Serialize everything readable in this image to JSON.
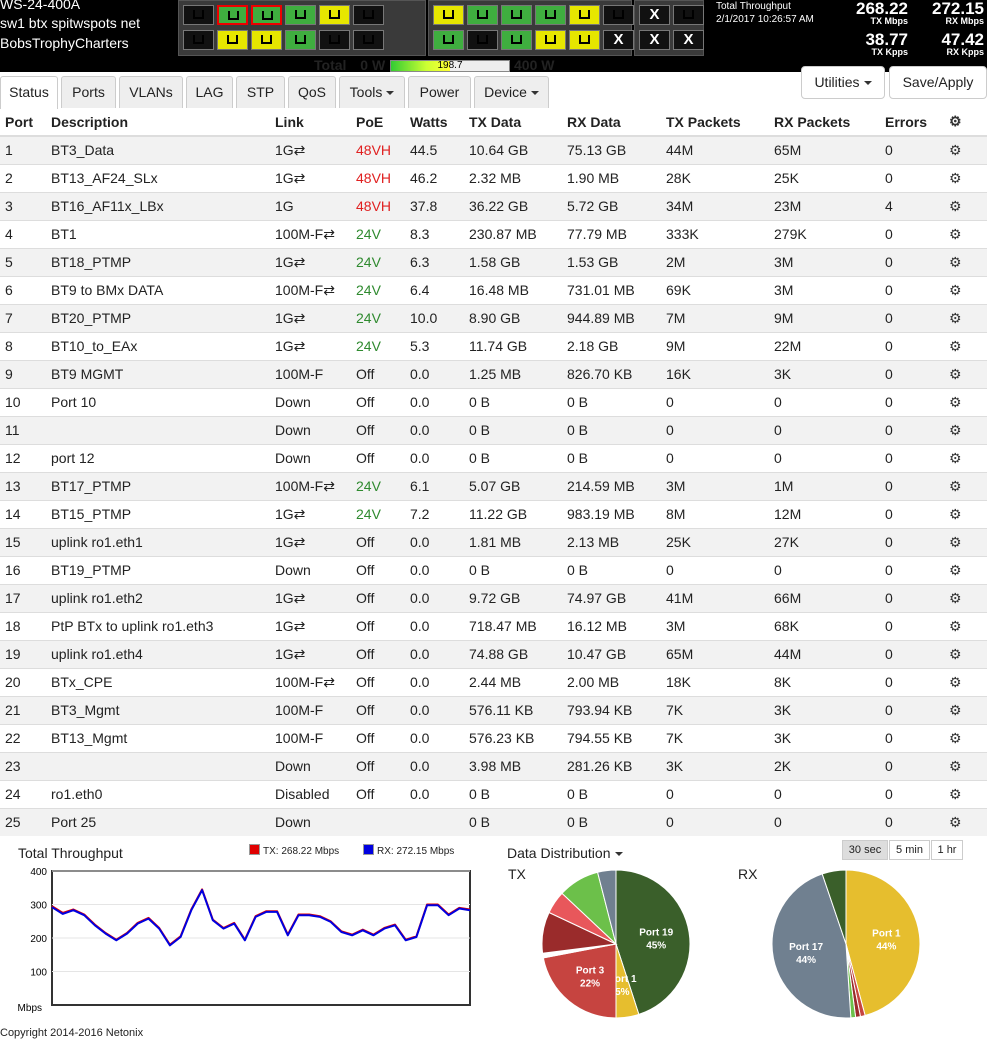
{
  "device": {
    "model": "WS-24-400A",
    "hostname": "sw1 btx spitwspots net",
    "location": "BobsTrophyCharters"
  },
  "power": {
    "label": "Total",
    "min": "0 W",
    "value": "198.7",
    "max": "400 W",
    "fraction": 0.497
  },
  "throughput": {
    "title": "Total Throughput",
    "datetime": "2/1/2017 10:26:57 AM",
    "tx_mbps": "268.22",
    "tx_mbps_unit": "TX Mbps",
    "rx_mbps": "272.15",
    "rx_mbps_unit": "RX Mbps",
    "tx_kpps": "38.77",
    "tx_kpps_unit": "TX Kpps",
    "rx_kpps": "47.42",
    "rx_kpps_unit": "RX Kpps"
  },
  "tabs": [
    "Status",
    "Ports",
    "VLANs",
    "LAG",
    "STP",
    "QoS",
    "Tools",
    "Power",
    "Device"
  ],
  "buttons": {
    "utilities": "Utilities",
    "save": "Save/Apply"
  },
  "columns": [
    "Port",
    "Description",
    "Link",
    "PoE",
    "Watts",
    "TX Data",
    "RX Data",
    "TX Packets",
    "RX Packets",
    "Errors"
  ],
  "rows": [
    [
      "1",
      "BT3_Data",
      "1G⇄",
      "48VH",
      "44.5",
      "10.64 GB",
      "75.13 GB",
      "44M",
      "65M",
      "0"
    ],
    [
      "2",
      "BT13_AF24_SLx",
      "1G⇄",
      "48VH",
      "46.2",
      "2.32 MB",
      "1.90 MB",
      "28K",
      "25K",
      "0"
    ],
    [
      "3",
      "BT16_AF11x_LBx",
      "1G",
      "48VH",
      "37.8",
      "36.22 GB",
      "5.72 GB",
      "34M",
      "23M",
      "4"
    ],
    [
      "4",
      "BT1",
      "100M-F⇄",
      "24V",
      "8.3",
      "230.87 MB",
      "77.79 MB",
      "333K",
      "279K",
      "0"
    ],
    [
      "5",
      "BT18_PTMP",
      "1G⇄",
      "24V",
      "6.3",
      "1.58 GB",
      "1.53 GB",
      "2M",
      "3M",
      "0"
    ],
    [
      "6",
      "BT9 to BMx DATA",
      "100M-F⇄",
      "24V",
      "6.4",
      "16.48 MB",
      "731.01 MB",
      "69K",
      "3M",
      "0"
    ],
    [
      "7",
      "BT20_PTMP",
      "1G⇄",
      "24V",
      "10.0",
      "8.90 GB",
      "944.89 MB",
      "7M",
      "9M",
      "0"
    ],
    [
      "8",
      "BT10_to_EAx",
      "1G⇄",
      "24V",
      "5.3",
      "11.74 GB",
      "2.18 GB",
      "9M",
      "22M",
      "0"
    ],
    [
      "9",
      "BT9 MGMT",
      "100M-F",
      "Off",
      "0.0",
      "1.25 MB",
      "826.70 KB",
      "16K",
      "3K",
      "0"
    ],
    [
      "10",
      "Port 10",
      "Down",
      "Off",
      "0.0",
      "0 B",
      "0 B",
      "0",
      "0",
      "0"
    ],
    [
      "11",
      "",
      "Down",
      "Off",
      "0.0",
      "0 B",
      "0 B",
      "0",
      "0",
      "0"
    ],
    [
      "12",
      "port 12",
      "Down",
      "Off",
      "0.0",
      "0 B",
      "0 B",
      "0",
      "0",
      "0"
    ],
    [
      "13",
      "BT17_PTMP",
      "100M-F⇄",
      "24V",
      "6.1",
      "5.07 GB",
      "214.59 MB",
      "3M",
      "1M",
      "0"
    ],
    [
      "14",
      "BT15_PTMP",
      "1G⇄",
      "24V",
      "7.2",
      "11.22 GB",
      "983.19 MB",
      "8M",
      "12M",
      "0"
    ],
    [
      "15",
      "uplink ro1.eth1",
      "1G⇄",
      "Off",
      "0.0",
      "1.81 MB",
      "2.13 MB",
      "25K",
      "27K",
      "0"
    ],
    [
      "16",
      "BT19_PTMP",
      "Down",
      "Off",
      "0.0",
      "0 B",
      "0 B",
      "0",
      "0",
      "0"
    ],
    [
      "17",
      "uplink ro1.eth2",
      "1G⇄",
      "Off",
      "0.0",
      "9.72 GB",
      "74.97 GB",
      "41M",
      "66M",
      "0"
    ],
    [
      "18",
      "PtP BTx to uplink ro1.eth3",
      "1G⇄",
      "Off",
      "0.0",
      "718.47 MB",
      "16.12 MB",
      "3M",
      "68K",
      "0"
    ],
    [
      "19",
      "uplink ro1.eth4",
      "1G⇄",
      "Off",
      "0.0",
      "74.88 GB",
      "10.47 GB",
      "65M",
      "44M",
      "0"
    ],
    [
      "20",
      "BTx_CPE",
      "100M-F⇄",
      "Off",
      "0.0",
      "2.44 MB",
      "2.00 MB",
      "18K",
      "8K",
      "0"
    ],
    [
      "21",
      "BT3_Mgmt",
      "100M-F",
      "Off",
      "0.0",
      "576.11 KB",
      "793.94 KB",
      "7K",
      "3K",
      "0"
    ],
    [
      "22",
      "BT13_Mgmt",
      "100M-F",
      "Off",
      "0.0",
      "576.23 KB",
      "794.55 KB",
      "7K",
      "3K",
      "0"
    ],
    [
      "23",
      "",
      "Down",
      "Off",
      "0.0",
      "3.98 MB",
      "281.26 KB",
      "3K",
      "2K",
      "0"
    ],
    [
      "24",
      "ro1.eth0",
      "Disabled",
      "Off",
      "0.0",
      "0 B",
      "0 B",
      "0",
      "0",
      "0"
    ],
    [
      "25",
      "Port 25",
      "Down",
      "",
      "",
      "0 B",
      "0 B",
      "0",
      "0",
      "0"
    ]
  ],
  "poe_colors": {
    "48VH": "#e02020",
    "24V": "#2f8a2f"
  },
  "port_leds": {
    "group1": [
      [
        "k",
        "g",
        "g",
        "g",
        "y",
        "k"
      ],
      [
        "k",
        "y",
        "y",
        "g",
        "k",
        "k"
      ]
    ],
    "group1_red": [
      1,
      2
    ],
    "group2": [
      [
        "y",
        "g",
        "g",
        "g",
        "y",
        "k"
      ],
      [
        "g",
        "k",
        "g",
        "y",
        "y",
        "x"
      ]
    ],
    "group3": [
      [
        "x",
        "k"
      ],
      [
        "x",
        "x"
      ]
    ]
  },
  "chart_data": [
    {
      "type": "line",
      "title": "Total Throughput",
      "ylabel": "Mbps",
      "ylim": [
        0,
        400
      ],
      "yticks": [
        "400",
        "300",
        "200",
        "100"
      ],
      "series": [
        {
          "name": "TX: 268.22 Mbps",
          "color": "#e00000",
          "values": [
            295,
            275,
            285,
            270,
            240,
            215,
            195,
            215,
            245,
            260,
            230,
            180,
            205,
            285,
            345,
            255,
            230,
            245,
            195,
            265,
            280,
            280,
            210,
            270,
            270,
            265,
            250,
            220,
            210,
            225,
            210,
            230,
            240,
            195,
            205,
            300,
            300,
            270,
            290,
            285
          ]
        },
        {
          "name": "RX: 272.15 Mbps",
          "color": "#0000e0",
          "values": [
            292,
            272,
            283,
            268,
            238,
            213,
            193,
            213,
            243,
            258,
            228,
            178,
            203,
            283,
            343,
            253,
            228,
            243,
            193,
            263,
            278,
            278,
            208,
            268,
            268,
            263,
            248,
            218,
            208,
            223,
            208,
            228,
            238,
            193,
            203,
            298,
            298,
            268,
            288,
            283
          ]
        }
      ]
    },
    {
      "type": "pie",
      "title": "TX",
      "slices": [
        {
          "label": "Port 19",
          "value": 45,
          "color": "#3a5f2a"
        },
        {
          "label": "Port 1",
          "value": 5,
          "color": "#e6be2e"
        },
        {
          "label": "Port 3",
          "value": 22,
          "color": "#c64440"
        },
        {
          "label": "",
          "value": 1,
          "color": "#ffffff"
        },
        {
          "label": "",
          "value": 9,
          "color": "#9a2b2b"
        },
        {
          "label": "",
          "value": 5,
          "color": "#e8575b"
        },
        {
          "label": "",
          "value": 9,
          "color": "#6cc04a"
        },
        {
          "label": "",
          "value": 4,
          "color": "#708090"
        }
      ]
    },
    {
      "type": "pie",
      "title": "RX",
      "slices": [
        {
          "label": "Port 1",
          "value": 44,
          "color": "#e6be2e"
        },
        {
          "label": "",
          "value": 1,
          "color": "#c64440"
        },
        {
          "label": "",
          "value": 1,
          "color": "#9a2b2b"
        },
        {
          "label": "",
          "value": 1,
          "color": "#6cc04a"
        },
        {
          "label": "Port 17",
          "value": 44,
          "color": "#708090"
        },
        {
          "label": "",
          "value": 5,
          "color": "#3a5f2a"
        }
      ]
    }
  ],
  "dist": {
    "title": "Data Distribution",
    "ranges": [
      "30 sec",
      "5 min",
      "1 hr"
    ]
  },
  "footer": "Copyright 2014-2016 Netonix"
}
